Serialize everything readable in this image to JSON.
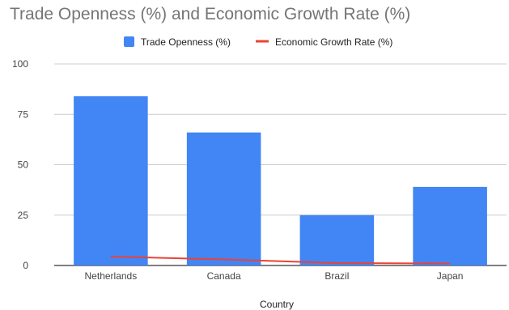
{
  "chart_data": {
    "type": "bar",
    "title": "Trade Openness (%) and Economic Growth Rate (%)",
    "xlabel": "Country",
    "ylabel": "",
    "categories": [
      "Netherlands",
      "Canada",
      "Brazil",
      "Japan"
    ],
    "series": [
      {
        "name": "Trade Openness (%)",
        "type": "bar",
        "color": "#4285f4",
        "values": [
          84,
          66,
          25,
          39
        ]
      },
      {
        "name": "Economic Growth Rate (%)",
        "type": "line",
        "color": "#ea4335",
        "values": [
          4.4,
          3.0,
          1.2,
          1.0
        ]
      }
    ],
    "ylim": [
      0,
      100
    ],
    "yticks": [
      0,
      25,
      50,
      75,
      100
    ],
    "grid": true,
    "legend": "top-center"
  }
}
